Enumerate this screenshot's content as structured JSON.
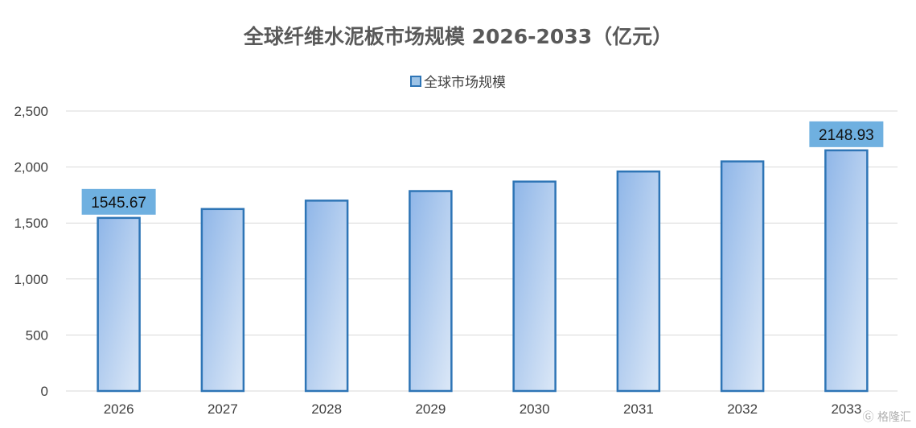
{
  "chart_data": {
    "type": "bar",
    "title": "全球纤维水泥板市场规模 2026-2033（亿元）",
    "categories": [
      "2026",
      "2027",
      "2028",
      "2029",
      "2030",
      "2031",
      "2032",
      "2033"
    ],
    "series": [
      {
        "name": "全球市场规模",
        "values": [
          1545.67,
          1625,
          1700,
          1785,
          1870,
          1960,
          2050,
          2148.93
        ]
      }
    ],
    "data_labels": [
      {
        "category": "2026",
        "text": "1545.67"
      },
      {
        "category": "2033",
        "text": "2148.93"
      }
    ],
    "y_ticks": [
      "0",
      "500",
      "1,000",
      "1,500",
      "2,000",
      "2,500"
    ],
    "ylim": [
      0,
      2500
    ],
    "xlabel": "",
    "ylabel": "",
    "grid": true,
    "legend_position": "top",
    "colors": {
      "bar_fill_light": "#dce8f7",
      "bar_fill_dark": "#8fb6e8",
      "bar_stroke": "#2e75b6",
      "label_bg": "#6fb0e0",
      "grid": "#d9d9d9",
      "axis_text": "#404040"
    }
  },
  "watermark": "格隆汇"
}
